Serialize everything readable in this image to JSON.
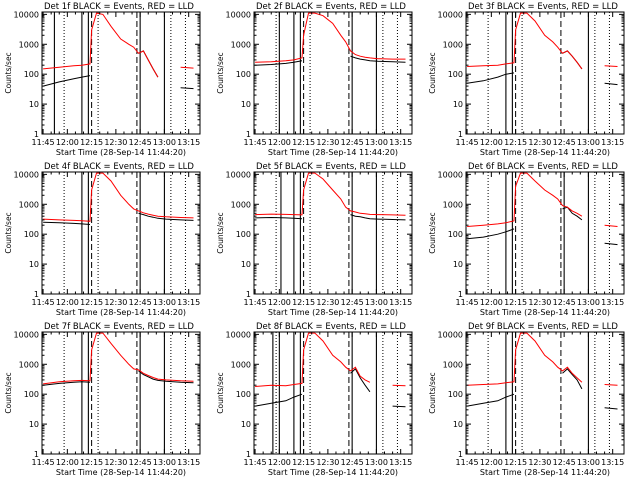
{
  "figure": {
    "xlabel": "Start Time (28-Sep-14 11:44:20)",
    "ylabel": "Counts/sec",
    "x_ticks": [
      "11:45",
      "12:00",
      "12:15",
      "12:30",
      "12:45",
      "13:00",
      "13:15"
    ],
    "y_ticks": [
      "1",
      "10",
      "100",
      "1000",
      "10000"
    ],
    "colors": {
      "events": "#000000",
      "lld": "#ff0000"
    }
  },
  "chart_data": [
    {
      "type": "line",
      "title": "Det 1f BLACK = Events, RED = LLD",
      "xlim": [
        "11:44:20",
        "13:22:00"
      ],
      "ylim": [
        1,
        12000
      ],
      "yscale": "log",
      "grid": false,
      "x": [
        "11:45",
        "11:55",
        "12:04",
        "12:09",
        "12:14",
        "12:15",
        "12:18",
        "12:22",
        "12:27",
        "12:33",
        "12:38",
        "12:41",
        "12:44",
        "12:47",
        "12:50",
        "12:53",
        "12:56",
        "13:01",
        "13:10",
        "13:18"
      ],
      "series": [
        {
          "name": "Events",
          "color": "#000000",
          "values": [
            40,
            55,
            70,
            80,
            90,
            null,
            null,
            null,
            null,
            null,
            null,
            null,
            500,
            600,
            300,
            150,
            80,
            null,
            35,
            33
          ]
        },
        {
          "name": "LLD",
          "color": "#ff0000",
          "values": [
            150,
            170,
            190,
            200,
            220,
            3000,
            11000,
            10000,
            4000,
            1500,
            1000,
            800,
            500,
            600,
            300,
            150,
            80,
            null,
            170,
            160
          ]
        }
      ],
      "vlines": {
        "solid": [
          "11:52",
          "12:09",
          "12:13",
          "12:45",
          "13:00"
        ],
        "dashed": [
          "12:15",
          "12:43"
        ],
        "dotted": [
          "11:58",
          "12:19",
          "13:04",
          "13:13"
        ]
      }
    },
    {
      "type": "line",
      "title": "Det 2f BLACK = Events, RED = LLD",
      "xlim": [
        "11:44:20",
        "13:22:00"
      ],
      "ylim": [
        1,
        12000
      ],
      "yscale": "log",
      "grid": false,
      "x": [
        "11:45",
        "11:55",
        "12:04",
        "12:09",
        "12:14",
        "12:15",
        "12:18",
        "12:22",
        "12:27",
        "12:33",
        "12:38",
        "12:41",
        "12:44",
        "12:47",
        "12:50",
        "12:53",
        "12:56",
        "13:01",
        "13:10",
        "13:18"
      ],
      "series": [
        {
          "name": "Events",
          "color": "#000000",
          "values": [
            200,
            210,
            230,
            250,
            280,
            null,
            null,
            null,
            null,
            null,
            null,
            null,
            400,
            350,
            320,
            300,
            280,
            270,
            260,
            250
          ]
        },
        {
          "name": "LLD",
          "color": "#ff0000",
          "values": [
            250,
            260,
            280,
            300,
            350,
            2000,
            11000,
            11000,
            9000,
            5000,
            2000,
            1200,
            600,
            450,
            400,
            370,
            350,
            330,
            320,
            320
          ]
        }
      ],
      "vlines": {
        "solid": [
          "12:00",
          "12:09",
          "12:13",
          "12:45",
          "13:00"
        ],
        "dashed": [
          "12:15",
          "12:43"
        ],
        "dotted": [
          "11:58",
          "12:19",
          "13:04",
          "13:13"
        ]
      }
    },
    {
      "type": "line",
      "title": "Det 3f BLACK = Events, RED = LLD",
      "xlim": [
        "11:44:20",
        "13:22:00"
      ],
      "ylim": [
        1,
        12000
      ],
      "yscale": "log",
      "grid": false,
      "x": [
        "11:45",
        "11:55",
        "12:04",
        "12:09",
        "12:14",
        "12:15",
        "12:18",
        "12:22",
        "12:27",
        "12:33",
        "12:38",
        "12:41",
        "12:44",
        "12:47",
        "12:50",
        "12:53",
        "12:56",
        "13:01",
        "13:10",
        "13:18"
      ],
      "series": [
        {
          "name": "Events",
          "color": "#000000",
          "values": [
            50,
            60,
            80,
            100,
            110,
            null,
            null,
            null,
            null,
            null,
            null,
            null,
            500,
            600,
            400,
            250,
            150,
            null,
            50,
            45
          ]
        },
        {
          "name": "LLD",
          "color": "#ff0000",
          "values": [
            180,
            190,
            200,
            220,
            240,
            3000,
            11000,
            11000,
            6000,
            2000,
            1200,
            800,
            500,
            600,
            400,
            250,
            150,
            null,
            190,
            180
          ]
        }
      ],
      "vlines": {
        "solid": [
          "12:09",
          "12:13",
          "13:00"
        ],
        "dashed": [
          "12:15",
          "12:43"
        ],
        "dotted": [
          "11:58",
          "12:19",
          "13:04",
          "13:13"
        ]
      }
    },
    {
      "type": "line",
      "title": "Det 4f BLACK = Events, RED = LLD",
      "xlim": [
        "11:44:20",
        "13:22:00"
      ],
      "ylim": [
        1,
        12000
      ],
      "yscale": "log",
      "grid": false,
      "x": [
        "11:45",
        "11:55",
        "12:04",
        "12:09",
        "12:14",
        "12:15",
        "12:18",
        "12:22",
        "12:27",
        "12:33",
        "12:38",
        "12:41",
        "12:44",
        "12:47",
        "12:50",
        "12:53",
        "12:56",
        "13:01",
        "13:10",
        "13:18"
      ],
      "series": [
        {
          "name": "Events",
          "color": "#000000",
          "values": [
            250,
            240,
            230,
            220,
            210,
            null,
            null,
            null,
            null,
            null,
            null,
            null,
            500,
            450,
            400,
            370,
            340,
            320,
            300,
            290
          ]
        },
        {
          "name": "LLD",
          "color": "#ff0000",
          "values": [
            320,
            300,
            290,
            280,
            270,
            3000,
            11000,
            11000,
            6000,
            2000,
            1000,
            700,
            600,
            520,
            470,
            430,
            400,
            380,
            360,
            350
          ]
        }
      ],
      "vlines": {
        "solid": [
          "12:09",
          "12:13",
          "12:45",
          "13:00"
        ],
        "dashed": [
          "12:15",
          "12:43"
        ],
        "dotted": [
          "11:58",
          "12:19",
          "13:04",
          "13:13"
        ]
      }
    },
    {
      "type": "line",
      "title": "Det 5f BLACK = Events, RED = LLD",
      "xlim": [
        "11:44:20",
        "13:22:00"
      ],
      "ylim": [
        1,
        12000
      ],
      "yscale": "log",
      "grid": false,
      "x": [
        "11:45",
        "11:55",
        "12:04",
        "12:09",
        "12:14",
        "12:15",
        "12:18",
        "12:22",
        "12:27",
        "12:33",
        "12:38",
        "12:41",
        "12:44",
        "12:47",
        "12:50",
        "12:53",
        "12:56",
        "13:01",
        "13:10",
        "13:18"
      ],
      "series": [
        {
          "name": "Events",
          "color": "#000000",
          "values": [
            350,
            360,
            350,
            340,
            330,
            null,
            null,
            null,
            null,
            null,
            null,
            null,
            450,
            400,
            380,
            350,
            330,
            320,
            310,
            300
          ]
        },
        {
          "name": "LLD",
          "color": "#ff0000",
          "values": [
            450,
            470,
            460,
            450,
            440,
            3000,
            11000,
            11000,
            7000,
            3000,
            1500,
            800,
            600,
            550,
            500,
            480,
            460,
            450,
            440,
            430
          ]
        }
      ],
      "vlines": {
        "solid": [
          "12:01",
          "12:09",
          "12:13",
          "12:45",
          "13:00"
        ],
        "dashed": [
          "12:15",
          "12:43"
        ],
        "dotted": [
          "11:58",
          "12:19",
          "13:04",
          "13:13"
        ]
      }
    },
    {
      "type": "line",
      "title": "Det 6f BLACK = Events, RED = LLD",
      "xlim": [
        "11:44:20",
        "13:22:00"
      ],
      "ylim": [
        1,
        12000
      ],
      "yscale": "log",
      "grid": false,
      "x": [
        "11:45",
        "11:55",
        "12:04",
        "12:09",
        "12:14",
        "12:15",
        "12:18",
        "12:22",
        "12:27",
        "12:33",
        "12:38",
        "12:41",
        "12:44",
        "12:47",
        "12:50",
        "12:53",
        "12:56",
        "13:01",
        "13:10",
        "13:18"
      ],
      "series": [
        {
          "name": "Events",
          "color": "#000000",
          "values": [
            70,
            80,
            100,
            120,
            150,
            null,
            null,
            null,
            null,
            null,
            null,
            null,
            700,
            800,
            500,
            400,
            300,
            null,
            50,
            45
          ]
        },
        {
          "name": "LLD",
          "color": "#ff0000",
          "values": [
            180,
            200,
            220,
            240,
            280,
            4000,
            11000,
            11000,
            6000,
            3000,
            2000,
            1500,
            900,
            800,
            600,
            500,
            400,
            null,
            200,
            180
          ]
        }
      ],
      "vlines": {
        "solid": [
          "12:09",
          "12:13",
          "12:45",
          "13:00"
        ],
        "dashed": [
          "12:15",
          "12:43"
        ],
        "dotted": [
          "11:58",
          "12:19",
          "13:04",
          "13:13"
        ]
      }
    },
    {
      "type": "line",
      "title": "Det 7f BLACK = Events, RED = LLD",
      "xlim": [
        "11:44:20",
        "13:22:00"
      ],
      "ylim": [
        1,
        12000
      ],
      "yscale": "log",
      "grid": false,
      "x": [
        "11:45",
        "11:55",
        "12:04",
        "12:09",
        "12:14",
        "12:15",
        "12:18",
        "12:22",
        "12:27",
        "12:33",
        "12:38",
        "12:41",
        "12:44",
        "12:47",
        "12:50",
        "12:53",
        "12:56",
        "13:01",
        "13:10",
        "13:18"
      ],
      "series": [
        {
          "name": "Events",
          "color": "#000000",
          "values": [
            200,
            230,
            250,
            260,
            250,
            null,
            null,
            null,
            null,
            null,
            null,
            null,
            600,
            450,
            380,
            320,
            290,
            270,
            250,
            240
          ]
        },
        {
          "name": "LLD",
          "color": "#ff0000",
          "values": [
            220,
            260,
            280,
            290,
            280,
            3000,
            11000,
            11000,
            5000,
            2000,
            1000,
            700,
            650,
            500,
            420,
            360,
            320,
            300,
            280,
            270
          ]
        }
      ],
      "vlines": {
        "solid": [
          "12:09",
          "12:13",
          "12:45",
          "13:00"
        ],
        "dashed": [
          "12:15",
          "12:43"
        ],
        "dotted": [
          "11:58",
          "12:19",
          "13:04",
          "13:13"
        ]
      }
    },
    {
      "type": "line",
      "title": "Det 8f BLACK = Events, RED = LLD",
      "xlim": [
        "11:44:20",
        "13:22:00"
      ],
      "ylim": [
        1,
        12000
      ],
      "yscale": "log",
      "grid": false,
      "x": [
        "11:45",
        "11:55",
        "12:04",
        "12:09",
        "12:14",
        "12:15",
        "12:18",
        "12:22",
        "12:27",
        "12:33",
        "12:38",
        "12:41",
        "12:44",
        "12:47",
        "12:50",
        "12:53",
        "12:56",
        "13:01",
        "13:10",
        "13:18"
      ],
      "series": [
        {
          "name": "Events",
          "color": "#000000",
          "values": [
            40,
            50,
            60,
            80,
            100,
            null,
            null,
            null,
            null,
            null,
            null,
            null,
            500,
            700,
            350,
            200,
            120,
            null,
            40,
            38
          ]
        },
        {
          "name": "LLD",
          "color": "#ff0000",
          "values": [
            180,
            200,
            190,
            210,
            230,
            3000,
            11000,
            11000,
            6000,
            2000,
            1200,
            800,
            600,
            800,
            400,
            300,
            250,
            null,
            200,
            190
          ]
        }
      ],
      "vlines": {
        "solid": [
          "11:56",
          "12:00",
          "12:09",
          "12:13",
          "12:45",
          "13:00"
        ],
        "dashed": [
          "12:15",
          "12:43"
        ],
        "dotted": [
          "11:58",
          "12:19",
          "13:04",
          "13:13"
        ]
      }
    },
    {
      "type": "line",
      "title": "Det 9f BLACK = Events, RED = LLD",
      "xlim": [
        "11:44:20",
        "13:22:00"
      ],
      "ylim": [
        1,
        12000
      ],
      "yscale": "log",
      "grid": false,
      "x": [
        "11:45",
        "11:55",
        "12:04",
        "12:09",
        "12:14",
        "12:15",
        "12:18",
        "12:22",
        "12:27",
        "12:33",
        "12:38",
        "12:41",
        "12:44",
        "12:47",
        "12:50",
        "12:53",
        "12:56",
        "13:01",
        "13:10",
        "13:18"
      ],
      "series": [
        {
          "name": "Events",
          "color": "#000000",
          "values": [
            40,
            50,
            60,
            80,
            100,
            null,
            null,
            null,
            null,
            null,
            null,
            null,
            500,
            700,
            450,
            300,
            150,
            null,
            35,
            32
          ]
        },
        {
          "name": "LLD",
          "color": "#ff0000",
          "values": [
            200,
            210,
            220,
            240,
            260,
            3000,
            11000,
            11000,
            6000,
            2000,
            1200,
            800,
            600,
            800,
            500,
            350,
            250,
            null,
            210,
            200
          ]
        }
      ],
      "vlines": {
        "solid": [
          "12:09",
          "12:13",
          "13:00"
        ],
        "dashed": [
          "12:15",
          "12:43"
        ],
        "dotted": [
          "11:58",
          "12:19",
          "13:04",
          "13:13"
        ]
      }
    }
  ]
}
